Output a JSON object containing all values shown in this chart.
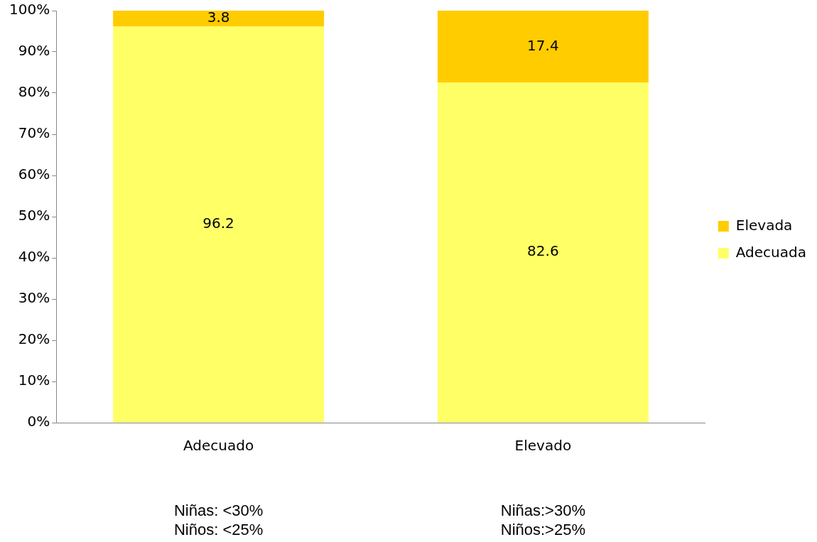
{
  "chart_data": {
    "type": "bar",
    "stacked": true,
    "categories": [
      "Adecuado",
      "Elevado"
    ],
    "series": [
      {
        "name": "Adecuada",
        "color": "#ffff66",
        "values": [
          96.2,
          82.6
        ]
      },
      {
        "name": "Elevada",
        "color": "#ffcc00",
        "values": [
          3.8,
          17.4
        ]
      }
    ],
    "ylim": [
      0,
      100
    ],
    "yticks": [
      {
        "value": 0,
        "label": "0%"
      },
      {
        "value": 10,
        "label": "10%"
      },
      {
        "value": 20,
        "label": "20%"
      },
      {
        "value": 30,
        "label": "30%"
      },
      {
        "value": 40,
        "label": "40%"
      },
      {
        "value": 50,
        "label": "50%"
      },
      {
        "value": 60,
        "label": "60%"
      },
      {
        "value": 70,
        "label": "70%"
      },
      {
        "value": 80,
        "label": "80%"
      },
      {
        "value": 90,
        "label": "90%"
      },
      {
        "value": 100,
        "label": "100%"
      }
    ],
    "data_labels": true,
    "grid": false,
    "legend": "right",
    "annotations": [
      "Niñas: <30%\nNiños: <25%",
      "Niñas:>30%\nNiños:>25%"
    ]
  }
}
